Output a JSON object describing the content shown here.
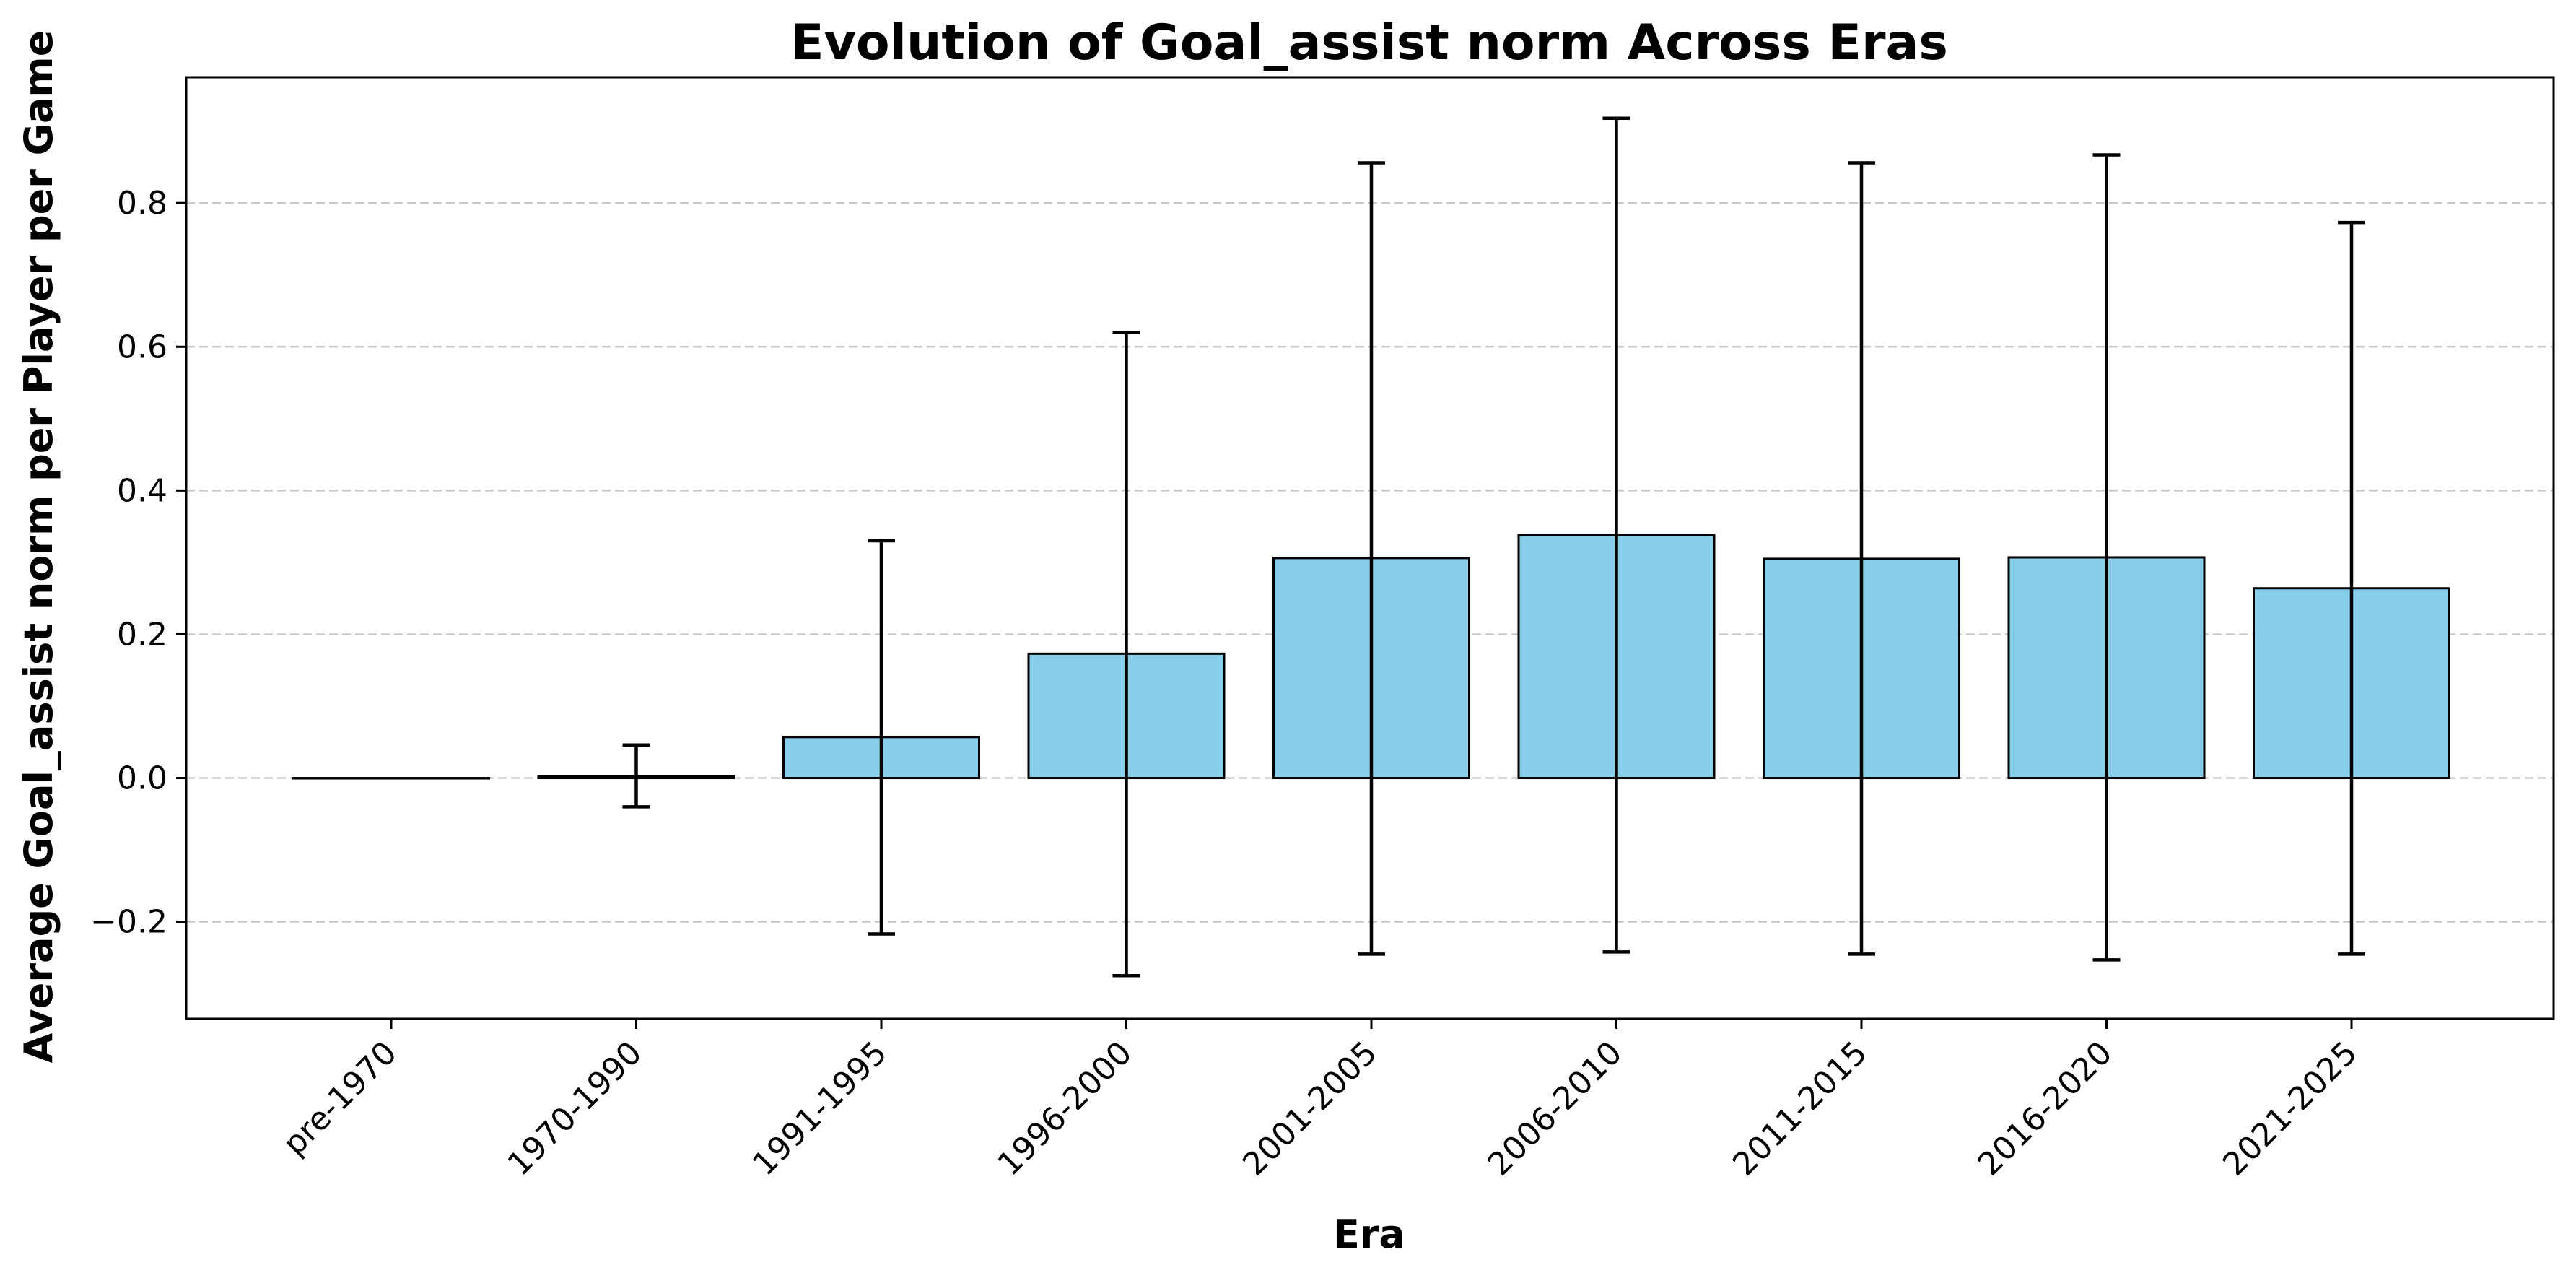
{
  "chart_data": {
    "type": "bar",
    "title": "Evolution of Goal_assist norm Across Eras",
    "xlabel": "Era",
    "ylabel": "Average Goal_assist norm per Player per Game",
    "categories": [
      "pre-1970",
      "1970-1990",
      "1991-1995",
      "1996-2000",
      "2001-2005",
      "2006-2010",
      "2011-2015",
      "2016-2020",
      "2021-2025"
    ],
    "values": [
      0.0,
      0.003,
      0.057,
      0.173,
      0.306,
      0.338,
      0.305,
      0.307,
      0.264
    ],
    "error_low": [
      0.0,
      -0.04,
      -0.217,
      -0.275,
      -0.245,
      -0.242,
      -0.245,
      -0.253,
      -0.245
    ],
    "error_high": [
      0.0,
      0.046,
      0.33,
      0.62,
      0.856,
      0.918,
      0.856,
      0.867,
      0.773
    ],
    "ylim": [
      -0.335,
      0.975
    ],
    "yticks": [
      -0.2,
      0.0,
      0.2,
      0.4,
      0.6,
      0.8
    ],
    "ytick_labels": [
      "−0.2",
      "0.0",
      "0.2",
      "0.4",
      "0.6",
      "0.8"
    ],
    "grid": "y-dashed",
    "bar_color": "#87ceeb",
    "edge_color": "#000000",
    "grid_color": "#c8c8c8"
  }
}
